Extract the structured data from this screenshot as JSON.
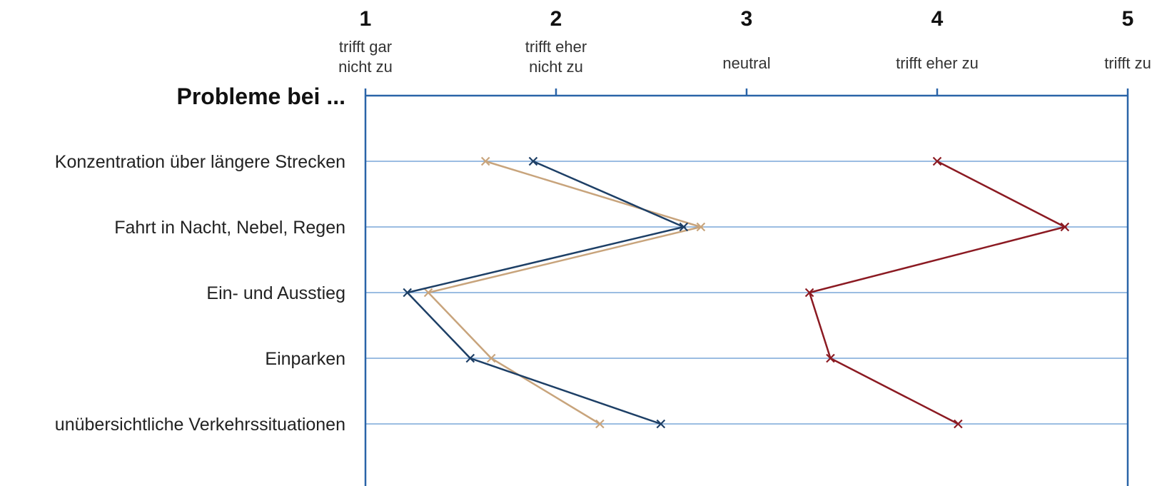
{
  "chart_data": {
    "type": "line",
    "orientation": "horizontal-scale",
    "heading": "Probleme bei ...",
    "scale_ticks": [
      {
        "value": 1,
        "label": "1",
        "description": [
          "trifft gar",
          "nicht zu"
        ]
      },
      {
        "value": 2,
        "label": "2",
        "description": [
          "trifft eher",
          "nicht zu"
        ]
      },
      {
        "value": 3,
        "label": "3",
        "description": [
          "neutral"
        ]
      },
      {
        "value": 4,
        "label": "4",
        "description": [
          "trifft eher zu"
        ]
      },
      {
        "value": 5,
        "label": "5",
        "description": [
          "trifft zu"
        ]
      }
    ],
    "xlim": [
      1,
      5
    ],
    "categories": [
      "Konzentration über längere Strecken",
      "Fahrt in Nacht, Nebel, Regen",
      "Ein- und Ausstieg",
      "Einparken",
      "unübersichtliche Verkehrssituationen"
    ],
    "series": [
      {
        "color": "#c8a47c",
        "values": [
          1.63,
          2.76,
          1.33,
          1.66,
          2.23
        ]
      },
      {
        "color": "#1d3f66",
        "values": [
          1.88,
          2.67,
          1.22,
          1.55,
          2.55
        ]
      },
      {
        "color": "#8b1a22",
        "values": [
          4.0,
          4.67,
          3.33,
          3.44,
          4.11
        ]
      }
    ],
    "grid": true,
    "legend": "none",
    "colors": {
      "axis": "#2a64a8",
      "gridline": "#7aa7d8"
    }
  }
}
